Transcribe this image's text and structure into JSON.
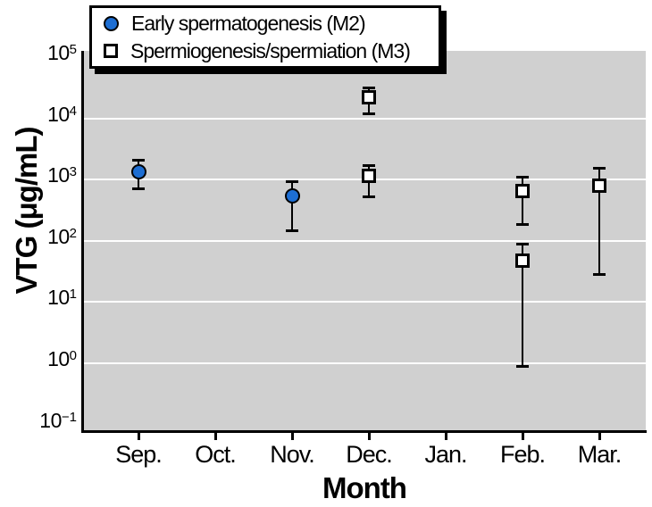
{
  "colors": {
    "plot_background": "#d0d0d0",
    "gridline": "#ffffff",
    "axis": "#000000",
    "m2_marker_fill": "#1d6ed3",
    "m3_marker_fill": "#ffffff"
  },
  "chart_data": {
    "type": "scatter",
    "title": "",
    "xlabel": "Month",
    "ylabel": "VTG (μg/mL)",
    "x_categories": [
      "Sep.",
      "Oct.",
      "Nov.",
      "Dec.",
      "Jan.",
      "Feb.",
      "Mar."
    ],
    "y_scale": "log",
    "ylim": [
      0.1,
      100000
    ],
    "y_tick_exponents": [
      5,
      4,
      3,
      2,
      1,
      0,
      -1
    ],
    "y_tick_label_format": "10^exponent",
    "y_gridline_exponents": [
      4,
      3,
      2,
      1,
      0
    ],
    "grid": "white horizontal decade gridlines on gray plot background",
    "legend_position": "top-left",
    "error_bars": "asymmetric, with end caps",
    "series": [
      {
        "name": "Early spermatogenesis (M2)",
        "marker": "circle",
        "fill": "#1d6ed3",
        "points": [
          {
            "month": "Sep.",
            "value": 1350,
            "upper": 2100,
            "lower": 720
          },
          {
            "month": "Nov.",
            "value": 550,
            "upper": 930,
            "lower": 150
          }
        ]
      },
      {
        "name": "Spermiogenesis/spermiation (M3)",
        "marker": "square",
        "fill": "#ffffff",
        "points": [
          {
            "month": "Dec.",
            "value": 22000,
            "upper": 32000,
            "lower": 12000
          },
          {
            "month": "Dec.",
            "value": 1150,
            "upper": 1700,
            "lower": 530
          },
          {
            "month": "Feb.",
            "value": 650,
            "upper": 1100,
            "lower": 190
          },
          {
            "month": "Feb.",
            "value": 47,
            "upper": 90,
            "lower": 0.9
          },
          {
            "month": "Mar.",
            "value": 800,
            "upper": 1550,
            "lower": 29
          }
        ]
      }
    ]
  }
}
